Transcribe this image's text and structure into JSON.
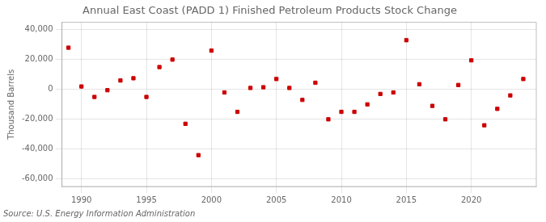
{
  "chart_data": {
    "type": "scatter",
    "title": "Annual East Coast (PADD 1) Finished Petroleum Products Stock Change",
    "ylabel": "Thousand Barrels",
    "annotations": [
      "Source: U.S. Energy Information Administration"
    ],
    "x": [
      1989,
      1990,
      1991,
      1992,
      1993,
      1994,
      1995,
      1996,
      1997,
      1998,
      1999,
      2000,
      2001,
      2002,
      2003,
      2004,
      2005,
      2006,
      2007,
      2008,
      2009,
      2010,
      2011,
      2012,
      2013,
      2014,
      2015,
      2016,
      2017,
      2018,
      2019,
      2020,
      2021,
      2022,
      2023,
      2024
    ],
    "values": [
      28000,
      2000,
      -5000,
      -500,
      6000,
      7500,
      -5000,
      15000,
      20000,
      -23000,
      -44000,
      26000,
      -2000,
      -15000,
      1000,
      1500,
      7000,
      1000,
      -7000,
      4500,
      -20000,
      -15000,
      -15000,
      -10000,
      -3000,
      -2000,
      33000,
      3500,
      -11000,
      -20000,
      3000,
      19500,
      -24000,
      -13000,
      -4000,
      7000
    ],
    "color": "#cc0000",
    "marker": "square",
    "xlim": [
      1988.5,
      2025
    ],
    "xticks": [
      1990,
      1995,
      2000,
      2005,
      2010,
      2015,
      2020
    ],
    "ylim": [
      -65000,
      45000
    ],
    "yticks": [
      {
        "value": -60000,
        "label": "-60,000"
      },
      {
        "value": -40000,
        "label": "-40,000"
      },
      {
        "value": -20000,
        "label": "-20,000"
      },
      0,
      {
        "value": 20000,
        "label": "20,000"
      },
      {
        "value": 40000,
        "label": "40,000"
      }
    ],
    "grid": true,
    "legend": false
  }
}
